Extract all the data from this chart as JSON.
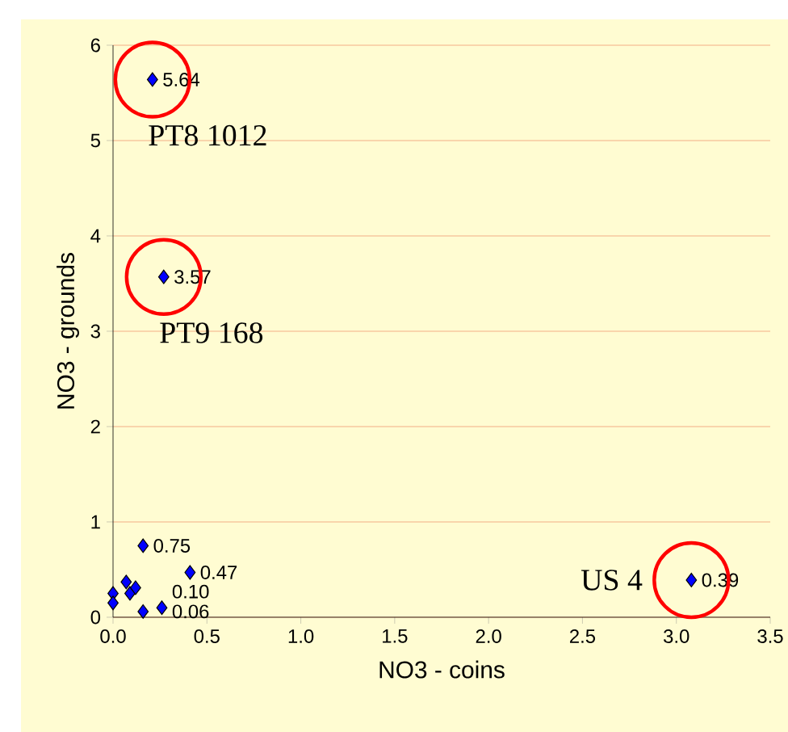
{
  "chart_data": {
    "type": "scatter",
    "xlabel": "NO3 - coins",
    "ylabel": "NO3 - grounds",
    "xlim": [
      0,
      3.5
    ],
    "ylim": [
      0,
      6
    ],
    "xticks": [
      {
        "value": 0,
        "label": "0.0"
      },
      {
        "value": 0.5,
        "label": "0.5"
      },
      {
        "value": 1,
        "label": "1.0"
      },
      {
        "value": 1.5,
        "label": "1.5"
      },
      {
        "value": 2,
        "label": "2.0"
      },
      {
        "value": 2.5,
        "label": "2.5"
      },
      {
        "value": 3,
        "label": "3.0"
      },
      {
        "value": 3.5,
        "label": "3.5"
      }
    ],
    "yticks": [
      0,
      1,
      2,
      3,
      4,
      5,
      6
    ],
    "grid": "y",
    "marker": "diamond",
    "series": [
      {
        "color": "#0000ff",
        "x": [
          0.21,
          0.27,
          3.08,
          0.16,
          0.41,
          0.26,
          0.16,
          0.07,
          0.0,
          0.0,
          0.09,
          0.12
        ],
        "values": [
          5.64,
          3.57,
          0.39,
          0.75,
          0.47,
          0.1,
          0.06,
          0.37,
          0.25,
          0.15,
          0.25,
          0.31
        ],
        "value_labels": [
          "5.64",
          "3.57",
          "0.39",
          "0.75",
          "0.47",
          "0.10",
          "0.06",
          null,
          null,
          null,
          null,
          null
        ]
      }
    ],
    "annotations": [
      {
        "text": "PT8 1012",
        "x": 0.21,
        "y": 5.64
      },
      {
        "text": "PT9 168",
        "x": 0.27,
        "y": 3.57
      },
      {
        "text": "US 4",
        "x": 3.08,
        "y": 0.39
      }
    ]
  }
}
